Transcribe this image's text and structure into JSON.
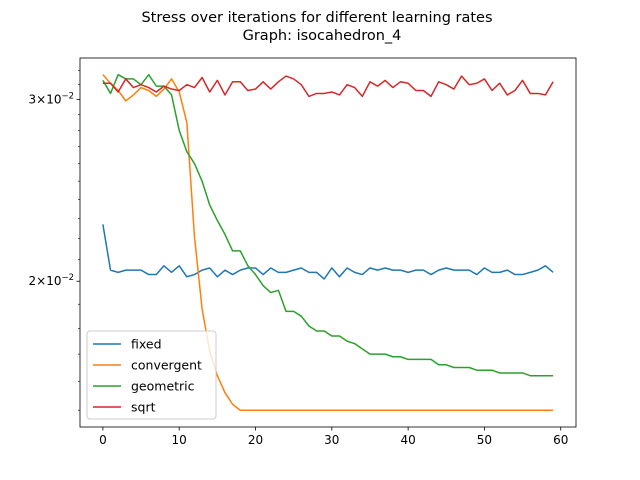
{
  "chart_data": {
    "type": "line",
    "title": "Stress over iterations for different learning rates",
    "subtitle": "Graph: isocahedron_4",
    "xlabel": "",
    "ylabel": "",
    "x_scale": "linear",
    "y_scale": "log",
    "xlim": [
      -3,
      62
    ],
    "ylim": [
      0.01445,
      0.0329
    ],
    "x_ticks": [
      0,
      10,
      20,
      30,
      40,
      50,
      60
    ],
    "x_tick_labels": [
      "0",
      "10",
      "20",
      "30",
      "40",
      "50",
      "60"
    ],
    "y_ticks": [
      0.02,
      0.03
    ],
    "y_tick_labels": [
      {
        "mantissa": "2",
        "times": "×",
        "base": "10",
        "exponent": "−2"
      },
      {
        "mantissa": "3",
        "times": "×",
        "base": "10",
        "exponent": "−2"
      }
    ],
    "legend_placement": "lower-left",
    "x": [
      0,
      1,
      2,
      3,
      4,
      5,
      6,
      7,
      8,
      9,
      10,
      11,
      12,
      13,
      14,
      15,
      16,
      17,
      18,
      19,
      20,
      21,
      22,
      23,
      24,
      25,
      26,
      27,
      28,
      29,
      30,
      31,
      32,
      33,
      34,
      35,
      36,
      37,
      38,
      39,
      40,
      41,
      42,
      43,
      44,
      45,
      46,
      47,
      48,
      49,
      50,
      51,
      52,
      53,
      54,
      55,
      56,
      57,
      58,
      59
    ],
    "series": [
      {
        "name": "fixed",
        "color": "#1f77b4",
        "values": [
          0.0227,
          0.0205,
          0.0204,
          0.0205,
          0.0205,
          0.0205,
          0.0203,
          0.0203,
          0.0207,
          0.0204,
          0.0207,
          0.0202,
          0.0203,
          0.0205,
          0.0206,
          0.0202,
          0.0205,
          0.0203,
          0.0205,
          0.0206,
          0.0206,
          0.0203,
          0.0206,
          0.0204,
          0.0204,
          0.0205,
          0.0206,
          0.0204,
          0.0204,
          0.0201,
          0.0206,
          0.0202,
          0.0206,
          0.0204,
          0.0203,
          0.0206,
          0.0205,
          0.0206,
          0.0205,
          0.0205,
          0.0204,
          0.0205,
          0.0205,
          0.0203,
          0.0205,
          0.0206,
          0.0205,
          0.0205,
          0.0205,
          0.0203,
          0.0206,
          0.0204,
          0.0204,
          0.0205,
          0.0203,
          0.0203,
          0.0204,
          0.0205,
          0.0207,
          0.0204
        ]
      },
      {
        "name": "convergent",
        "color": "#ff7f0e",
        "values": [
          0.0317,
          0.0311,
          0.0306,
          0.0299,
          0.0303,
          0.0308,
          0.0306,
          0.0302,
          0.0307,
          0.0314,
          0.0305,
          0.0285,
          0.0221,
          0.0188,
          0.0171,
          0.0162,
          0.0156,
          0.0152,
          0.015,
          0.015,
          0.015,
          0.015,
          0.015,
          0.015,
          0.015,
          0.015,
          0.015,
          0.015,
          0.015,
          0.015,
          0.015,
          0.015,
          0.015,
          0.015,
          0.015,
          0.015,
          0.015,
          0.015,
          0.015,
          0.015,
          0.015,
          0.015,
          0.015,
          0.015,
          0.015,
          0.015,
          0.015,
          0.015,
          0.015,
          0.015,
          0.015,
          0.015,
          0.015,
          0.015,
          0.015,
          0.015,
          0.015,
          0.015,
          0.015,
          0.015
        ]
      },
      {
        "name": "geometric",
        "color": "#2ca02c",
        "values": [
          0.0313,
          0.0304,
          0.0317,
          0.0314,
          0.0314,
          0.031,
          0.0317,
          0.0309,
          0.0309,
          0.0303,
          0.028,
          0.0267,
          0.026,
          0.025,
          0.0237,
          0.0229,
          0.0222,
          0.0214,
          0.0214,
          0.0207,
          0.0203,
          0.0198,
          0.0195,
          0.0196,
          0.0187,
          0.0187,
          0.0185,
          0.0181,
          0.0179,
          0.0179,
          0.0177,
          0.0177,
          0.0175,
          0.0174,
          0.0172,
          0.017,
          0.017,
          0.017,
          0.0169,
          0.0169,
          0.0168,
          0.0168,
          0.0168,
          0.0168,
          0.0166,
          0.0166,
          0.0165,
          0.0165,
          0.0165,
          0.0164,
          0.0164,
          0.0164,
          0.0163,
          0.0163,
          0.0163,
          0.0163,
          0.0162,
          0.0162,
          0.0162,
          0.0162
        ]
      },
      {
        "name": "sqrt",
        "color": "#d62728",
        "values": [
          0.0311,
          0.0311,
          0.0305,
          0.0314,
          0.0308,
          0.031,
          0.0308,
          0.0305,
          0.0309,
          0.0307,
          0.0306,
          0.031,
          0.0308,
          0.0315,
          0.0305,
          0.0313,
          0.0303,
          0.0312,
          0.0312,
          0.0306,
          0.0307,
          0.0312,
          0.0307,
          0.0312,
          0.0316,
          0.0314,
          0.031,
          0.0302,
          0.0304,
          0.0304,
          0.0305,
          0.0303,
          0.031,
          0.0308,
          0.0302,
          0.0312,
          0.0309,
          0.0313,
          0.0308,
          0.0312,
          0.0311,
          0.0306,
          0.0306,
          0.0302,
          0.0312,
          0.031,
          0.0307,
          0.0316,
          0.031,
          0.0311,
          0.0314,
          0.0306,
          0.0311,
          0.0303,
          0.0306,
          0.0313,
          0.0304,
          0.0304,
          0.0303,
          0.0312
        ]
      }
    ]
  }
}
